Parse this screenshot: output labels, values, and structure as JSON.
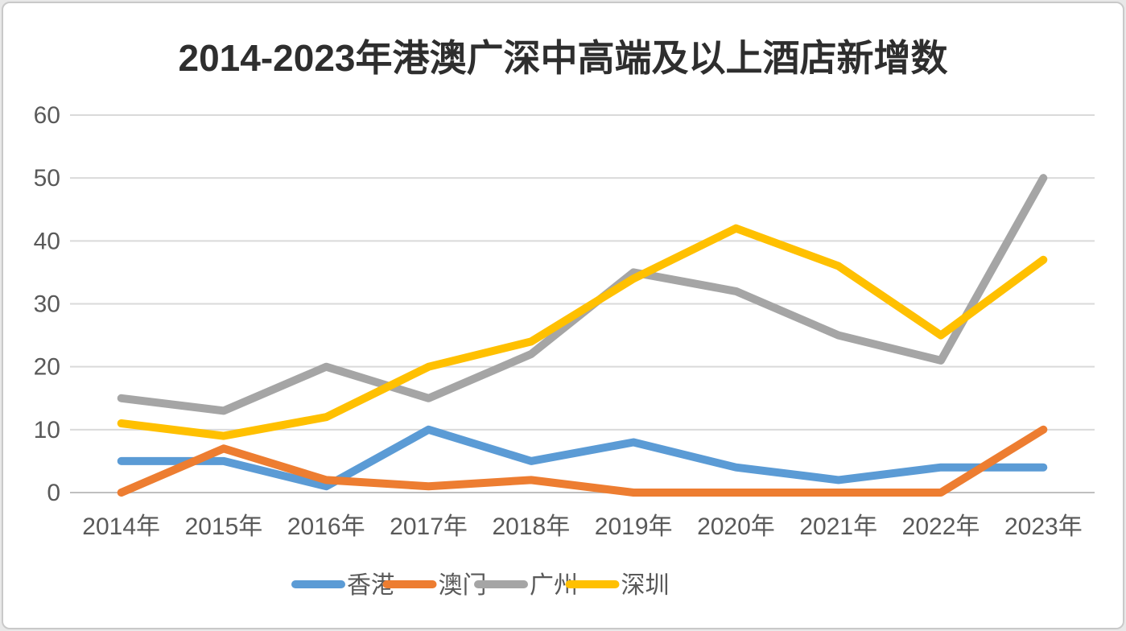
{
  "chart_data": {
    "type": "line",
    "title": "2014-2023年港澳广深中高端及以上酒店新增数",
    "categories": [
      "2014年",
      "2015年",
      "2016年",
      "2017年",
      "2018年",
      "2019年",
      "2020年",
      "2021年",
      "2022年",
      "2023年"
    ],
    "series": [
      {
        "name": "香港",
        "color": "#5B9BD5",
        "values": [
          5,
          5,
          1,
          10,
          5,
          8,
          4,
          2,
          4,
          4
        ]
      },
      {
        "name": "澳门",
        "color": "#ED7D31",
        "values": [
          0,
          7,
          2,
          1,
          2,
          0,
          0,
          0,
          0,
          10
        ]
      },
      {
        "name": "广州",
        "color": "#A5A5A5",
        "values": [
          15,
          13,
          20,
          15,
          22,
          35,
          32,
          25,
          21,
          50
        ]
      },
      {
        "name": "深圳",
        "color": "#FFC000",
        "values": [
          11,
          9,
          12,
          20,
          24,
          34,
          42,
          36,
          25,
          37
        ]
      }
    ],
    "ylabel": "",
    "xlabel": "",
    "ylim": [
      0,
      60
    ],
    "yticks": [
      0,
      10,
      20,
      30,
      40,
      50,
      60
    ],
    "grid": "horizontal",
    "legend_position": "bottom"
  },
  "colors": {
    "gridline": "#dadada",
    "axis_line": "#bfbfbf",
    "tick_label": "#595959",
    "legend_label": "#595959",
    "title": "#2e2e2e",
    "background": "#ffffff"
  }
}
